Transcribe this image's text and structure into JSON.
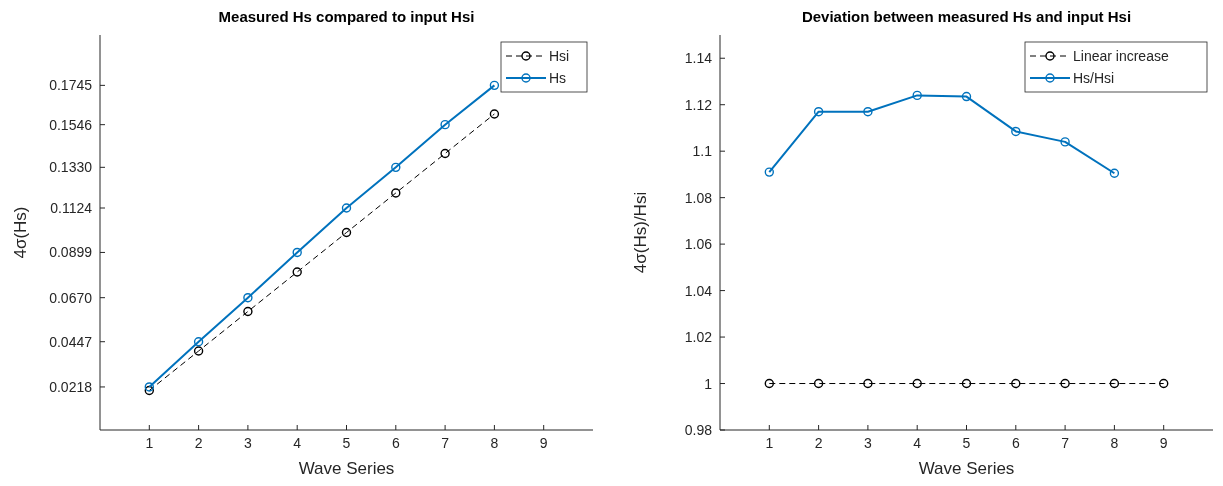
{
  "chart_data": [
    {
      "type": "line",
      "title": "Measured Hs compared to input Hsi",
      "xlabel": "Wave Series",
      "ylabel": "4σ(Hs)",
      "xlim": [
        0,
        10
      ],
      "xticks": [
        1,
        2,
        3,
        4,
        5,
        6,
        7,
        8,
        9
      ],
      "ylim": [
        0,
        0.2
      ],
      "yticks": [
        0.0218,
        0.0447,
        {
          "value": 0.067,
          "label": "0.0670"
        },
        0.0899,
        0.1124,
        {
          "value": 0.133,
          "label": "0.1330"
        },
        0.1546,
        0.1745
      ],
      "legend": "top right",
      "grid": false,
      "marker": "circle",
      "series": [
        {
          "name": "Hsi",
          "color": "#000000",
          "line_style": "dashed",
          "x": [
            1,
            2,
            3,
            4,
            5,
            6,
            7,
            8
          ],
          "values": [
            0.02,
            0.04,
            0.06,
            0.08,
            0.1,
            0.12,
            0.14,
            0.16
          ]
        },
        {
          "name": "Hs",
          "color": "#0072bd",
          "line_style": "solid",
          "x": [
            1,
            2,
            3,
            4,
            5,
            6,
            7,
            8
          ],
          "values": [
            0.0218,
            0.0447,
            0.067,
            0.0899,
            0.1124,
            0.133,
            0.1546,
            0.1745
          ]
        }
      ]
    },
    {
      "type": "line",
      "title": "Deviation between measured Hs and input Hsi",
      "xlabel": "Wave Series",
      "ylabel": "4σ(Hs)/Hsi",
      "xlim": [
        0,
        10
      ],
      "xticks": [
        1,
        2,
        3,
        4,
        5,
        6,
        7,
        8,
        9
      ],
      "ylim": [
        0.98,
        1.15
      ],
      "yticks": [
        0.98,
        1,
        1.02,
        1.04,
        1.06,
        1.08,
        1.1,
        1.12,
        1.14
      ],
      "legend": "top right",
      "grid": false,
      "marker": "circle",
      "series": [
        {
          "name": "Linear increase",
          "color": "#000000",
          "line_style": "dashed",
          "x": [
            1,
            2,
            3,
            4,
            5,
            6,
            7,
            8,
            9
          ],
          "values": [
            1,
            1,
            1,
            1,
            1,
            1,
            1,
            1,
            1
          ]
        },
        {
          "name": "Hs/Hsi",
          "color": "#0072bd",
          "line_style": "solid",
          "x": [
            1,
            2,
            3,
            4,
            5,
            6,
            7,
            8
          ],
          "values": [
            1.091,
            1.117,
            1.117,
            1.124,
            1.1235,
            1.1085,
            1.104,
            1.0905
          ]
        }
      ]
    }
  ]
}
